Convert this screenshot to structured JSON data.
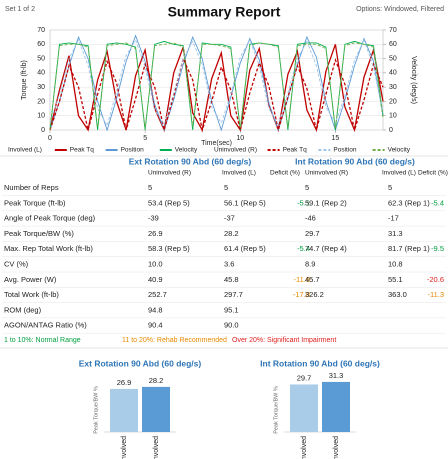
{
  "header": {
    "set_label": "Set 1 of 2",
    "title": "Summary Report",
    "options": "Options: Windowed, Filtered"
  },
  "top_chart": {
    "type": "line",
    "xlabel": "Time(sec)",
    "ylabel": "Torque (ft-lb)",
    "y2label": "Velocity (deg/s)",
    "x": [
      0,
      0.5,
      1,
      1.5,
      2,
      2.5,
      3,
      3.5,
      4,
      4.5,
      5,
      5.5,
      6,
      6.5,
      7,
      7.5,
      8,
      8.5,
      9,
      9.5,
      10,
      10.5,
      11,
      11.5,
      12,
      12.5,
      13,
      13.5,
      14,
      14.5,
      15,
      15.5,
      16,
      16.5,
      17,
      17.5
    ],
    "xlim": [
      0,
      17.5
    ],
    "xticks": [
      0,
      5,
      10,
      15
    ],
    "ylim": [
      0,
      70
    ],
    "yticks": [
      0,
      10,
      20,
      30,
      40,
      50,
      60,
      70
    ],
    "y2lim": [
      0,
      70
    ],
    "y2ticks": [
      0,
      10,
      20,
      30,
      40,
      50,
      60,
      70
    ],
    "grid": true,
    "series": [
      {
        "group": "Involved (L)",
        "name": "Peak Tq",
        "color": "#c00000",
        "dashed": false,
        "values": [
          0,
          28,
          52,
          10,
          0,
          35,
          55,
          20,
          0,
          38,
          56,
          15,
          0,
          40,
          58,
          12,
          0,
          36,
          54,
          10,
          0,
          42,
          57,
          18,
          0,
          39,
          55,
          14,
          0,
          41,
          60,
          16,
          0,
          37,
          56,
          20
        ]
      },
      {
        "group": "Involved (L)",
        "name": "Position",
        "color": "#5b9bd5",
        "dashed": false,
        "values": [
          0,
          20,
          45,
          65,
          50,
          20,
          0,
          22,
          48,
          66,
          48,
          18,
          0,
          21,
          46,
          65,
          50,
          20,
          0,
          23,
          47,
          64,
          49,
          19,
          0,
          22,
          46,
          65,
          51,
          20,
          0,
          21,
          45,
          64,
          48,
          10
        ]
      },
      {
        "group": "Involved (L)",
        "name": "Velocity",
        "color": "#00b050",
        "dashed": false,
        "axis": "y2",
        "values": [
          0,
          60,
          61,
          60,
          59,
          0,
          60,
          61,
          60,
          58,
          0,
          60,
          62,
          60,
          59,
          0,
          61,
          60,
          60,
          58,
          0,
          60,
          61,
          60,
          59,
          0,
          60,
          61,
          61,
          58,
          0,
          60,
          62,
          60,
          59,
          10
        ]
      },
      {
        "group": "Uninvolved (R)",
        "name": "Peak Tq",
        "color": "#c00000",
        "dashed": true,
        "values": [
          0,
          20,
          45,
          30,
          0,
          25,
          48,
          33,
          0,
          22,
          46,
          30,
          0,
          24,
          50,
          35,
          0,
          20,
          44,
          28,
          0,
          26,
          47,
          31,
          0,
          23,
          45,
          29,
          0,
          25,
          49,
          32,
          0,
          21,
          46,
          30
        ]
      },
      {
        "group": "Uninvolved (R)",
        "name": "Position",
        "color": "#9dc3e6",
        "dashed": true,
        "values": [
          5,
          25,
          50,
          63,
          45,
          15,
          3,
          27,
          52,
          63,
          44,
          14,
          4,
          26,
          50,
          62,
          46,
          16,
          5,
          25,
          51,
          63,
          45,
          15,
          4,
          26,
          50,
          62,
          45,
          16,
          5,
          24,
          49,
          63,
          44,
          12
        ]
      },
      {
        "group": "Uninvolved (R)",
        "name": "Velocity",
        "color": "#70ad47",
        "dashed": true,
        "axis": "y2",
        "values": [
          0,
          59,
          60,
          60,
          58,
          2,
          59,
          60,
          61,
          57,
          1,
          59,
          60,
          61,
          58,
          2,
          60,
          60,
          59,
          57,
          1,
          59,
          61,
          60,
          58,
          2,
          59,
          60,
          60,
          57,
          1,
          59,
          61,
          60,
          58,
          8
        ]
      }
    ]
  },
  "table": {
    "groups": [
      "Ext Rotation 90 Abd (60 deg/s)",
      "Int Rotation 90 Abd (60 deg/s)"
    ],
    "columns": [
      "Uninvolved (R)",
      "Involved (L)",
      "Deficit (%)",
      "Uninvolved (R)",
      "Involved (L)",
      "Deficit (%)"
    ],
    "rows": [
      {
        "label": "Number of Reps",
        "cells": [
          "5",
          "5",
          null,
          "5",
          "5",
          null
        ],
        "colors": [
          null,
          null,
          null,
          null,
          null,
          null
        ]
      },
      {
        "label": "Peak Torque (ft-lb)",
        "cells": [
          "53.4 (Rep 5)",
          "56.1 (Rep 5)",
          "-5.1",
          "59.1 (Rep 2)",
          "62.3 (Rep 1)",
          "-5.4"
        ],
        "colors": [
          null,
          null,
          "#00a040",
          null,
          null,
          "#00a040"
        ]
      },
      {
        "label": "Angle of Peak Torque (deg)",
        "cells": [
          "-39",
          "-37",
          null,
          "-46",
          "-17",
          null
        ],
        "colors": [
          null,
          null,
          null,
          null,
          null,
          null
        ]
      },
      {
        "label": "Peak Torque/BW (%)",
        "cells": [
          "26.9",
          "28.2",
          null,
          "29.7",
          "31.3",
          null
        ],
        "colors": [
          null,
          null,
          null,
          null,
          null,
          null
        ]
      },
      {
        "label": "Max. Rep Total Work (ft-lb)",
        "cells": [
          "58.3 (Rep 5)",
          "61.4 (Rep 5)",
          "-5.4",
          "74.7 (Rep 4)",
          "81.7 (Rep 1)",
          "-9.5"
        ],
        "colors": [
          null,
          null,
          "#00a040",
          null,
          null,
          "#00a040"
        ]
      },
      {
        "label": "CV (%)",
        "cells": [
          "10.0",
          "3.6",
          null,
          "8.9",
          "10.8",
          null
        ],
        "colors": [
          null,
          null,
          null,
          null,
          null,
          null
        ]
      },
      {
        "label": "Avg. Power (W)",
        "cells": [
          "40.9",
          "45.8",
          "-11.9",
          "45.7",
          "55.1",
          "-20.6"
        ],
        "colors": [
          null,
          null,
          "#e68a00",
          null,
          null,
          "#e02020"
        ]
      },
      {
        "label": "Total Work (ft-lb)",
        "cells": [
          "252.7",
          "297.7",
          "-17.8",
          "326.2",
          "363.0",
          "-11.3"
        ],
        "colors": [
          null,
          null,
          "#e68a00",
          null,
          null,
          "#e68a00"
        ]
      },
      {
        "label": "ROM (deg)",
        "cells": [
          "94.8",
          "95.1",
          null,
          null,
          null,
          null
        ],
        "colors": [
          null,
          null,
          null,
          null,
          null,
          null
        ]
      },
      {
        "label": "AGON/ANTAG Ratio (%)",
        "cells": [
          "90.4",
          "90.0",
          null,
          null,
          null,
          null
        ],
        "colors": [
          null,
          null,
          null,
          null,
          null,
          null
        ]
      }
    ],
    "legend": [
      {
        "text": "1 to 10%: Normal Range",
        "color": "#00a040"
      },
      {
        "text": "11 to 20%: Rehab Recommended",
        "color": "#e68a00"
      },
      {
        "text": "Over 20%: Significant Impairment",
        "color": "#e02020"
      }
    ]
  },
  "bar_charts": [
    {
      "type": "bar",
      "title": "Ext Rotation 90 Abd (60 deg/s)",
      "ylabel": "Peak Torque/BW %",
      "categories": [
        "Uninvolved",
        "Involved"
      ],
      "values": [
        26.9,
        28.2
      ],
      "colors": [
        "#a9cce8",
        "#5b9bd5"
      ],
      "ylim": [
        0,
        35
      ]
    },
    {
      "type": "bar",
      "title": "Int Rotation 90 Abd (60 deg/s)",
      "ylabel": "Peak Torque/BW %",
      "categories": [
        "Uninvolved",
        "Involved"
      ],
      "values": [
        29.7,
        31.3
      ],
      "colors": [
        "#a9cce8",
        "#5b9bd5"
      ],
      "ylim": [
        0,
        35
      ]
    }
  ]
}
